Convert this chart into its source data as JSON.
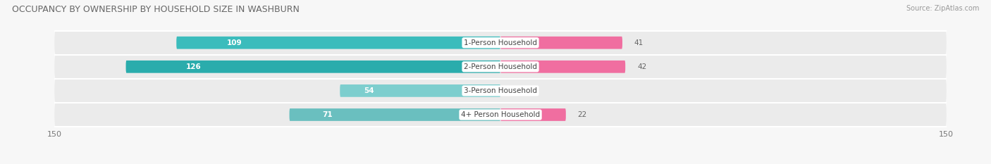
{
  "title": "OCCUPANCY BY OWNERSHIP BY HOUSEHOLD SIZE IN WASHBURN",
  "source": "Source: ZipAtlas.com",
  "categories": [
    "1-Person Household",
    "2-Person Household",
    "3-Person Household",
    "4+ Person Household"
  ],
  "owner_values": [
    109,
    126,
    54,
    71
  ],
  "renter_values": [
    41,
    42,
    0,
    22
  ],
  "owner_colors": [
    "#3BBCBC",
    "#2AACAC",
    "#7DCECE",
    "#6ABFBF"
  ],
  "renter_colors": [
    "#F06EA0",
    "#F06EA0",
    "#F4B8CE",
    "#F06EA0"
  ],
  "row_bg_color": "#EBEBEB",
  "row_stripe_color": "#E0E0E0",
  "axis_max": 150,
  "title_fontsize": 9,
  "label_fontsize": 7.5,
  "tick_fontsize": 8,
  "legend_fontsize": 8,
  "bg_color": "#F7F7F7"
}
